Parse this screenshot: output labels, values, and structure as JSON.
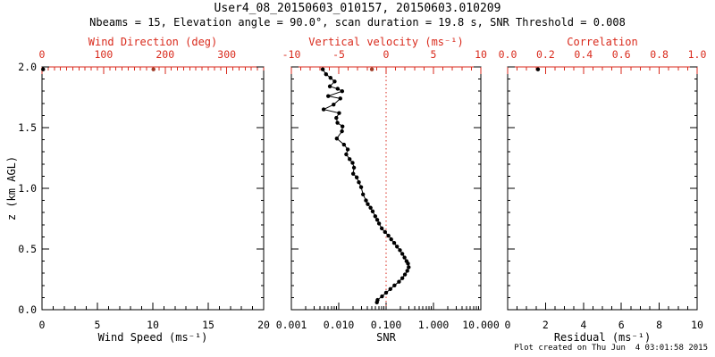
{
  "title": "User4_08_20150603_010157, 20150603.010209",
  "subtitle": "Nbeams = 15, Elevation angle = 90.0°, scan duration = 19.8 s, SNR Threshold = 0.008",
  "footer": "Plot created on Thu Jun  4 03:01:58 2015",
  "colors": {
    "background": "#ffffff",
    "black": "#000000",
    "axis_red": "#d92a1c",
    "data_red": "#a03c28"
  },
  "y_axis": {
    "label": "z (km AGL)",
    "range": [
      0,
      2
    ],
    "major": [
      0,
      0.5,
      1,
      1.5,
      2
    ],
    "labels": [
      "0.0",
      "0.5",
      "1.0",
      "1.5",
      "2.0"
    ],
    "minor_step": 0.1
  },
  "chart_data": [
    {
      "type": "scatter",
      "name": "wind",
      "ylabel": "z (km AGL)",
      "ylim": [
        0,
        2
      ],
      "bottom_axis": {
        "label": "Wind Speed (ms⁻¹)",
        "scale": "linear",
        "range": [
          0,
          20
        ],
        "major": [
          0,
          5,
          10,
          15,
          20
        ],
        "labels": [
          "0",
          "5",
          "10",
          "15",
          "20"
        ],
        "minor_step": 1,
        "color": "black"
      },
      "top_axis": {
        "label": "Wind Direction (deg)",
        "scale": "linear",
        "range": [
          0,
          360
        ],
        "major": [
          0,
          100,
          200,
          300
        ],
        "labels": [
          "0",
          "100",
          "200",
          "300"
        ],
        "minor_step": 10,
        "color": "axis_red"
      },
      "series": [
        {
          "name": "wind-speed",
          "axis": "bottom",
          "color": "black",
          "line": false,
          "points": [
            [
              0.1,
              1.98
            ]
          ]
        },
        {
          "name": "wind-direction",
          "axis": "top",
          "color": "data_red",
          "line": false,
          "points": [
            [
              181,
              1.98
            ]
          ]
        }
      ]
    },
    {
      "type": "scatter-line",
      "name": "snr",
      "ylabel": "z (km AGL)",
      "ylim": [
        0,
        2
      ],
      "bottom_axis": {
        "label": "SNR",
        "scale": "log",
        "range": [
          0.001,
          10
        ],
        "major": [
          0.001,
          0.01,
          0.1,
          1,
          10
        ],
        "labels": [
          "0.001",
          "0.010",
          "0.100",
          "1.000",
          "10.000"
        ],
        "color": "black"
      },
      "top_axis": {
        "label": "Vertical velocity (ms⁻¹)",
        "scale": "linear",
        "range": [
          -10,
          10
        ],
        "major": [
          -10,
          -5,
          0,
          5,
          10
        ],
        "labels": [
          "-10",
          "-5",
          "0",
          "5",
          "10"
        ],
        "minor_step": 1,
        "color": "axis_red"
      },
      "reference_line": {
        "axis": "bottom",
        "value": 0.1,
        "style": "dotted",
        "color": "axis_red"
      },
      "series": [
        {
          "name": "snr-profile",
          "axis": "bottom",
          "color": "black",
          "line": true,
          "points": [
            [
              0.0046,
              1.98
            ],
            [
              0.0054,
              1.94
            ],
            [
              0.0067,
              1.91
            ],
            [
              0.0082,
              1.88
            ],
            [
              0.0065,
              1.84
            ],
            [
              0.0095,
              1.82
            ],
            [
              0.0118,
              1.8
            ],
            [
              0.006,
              1.76
            ],
            [
              0.0108,
              1.74
            ],
            [
              0.0078,
              1.69
            ],
            [
              0.0048,
              1.65
            ],
            [
              0.0102,
              1.62
            ],
            [
              0.0089,
              1.58
            ],
            [
              0.0094,
              1.54
            ],
            [
              0.012,
              1.51
            ],
            [
              0.0117,
              1.47
            ],
            [
              0.0091,
              1.41
            ],
            [
              0.0129,
              1.36
            ],
            [
              0.0155,
              1.32
            ],
            [
              0.0144,
              1.28
            ],
            [
              0.017,
              1.24
            ],
            [
              0.0196,
              1.21
            ],
            [
              0.021,
              1.17
            ],
            [
              0.0202,
              1.12
            ],
            [
              0.024,
              1.09
            ],
            [
              0.0266,
              1.05
            ],
            [
              0.0297,
              1.01
            ],
            [
              0.0326,
              0.95
            ],
            [
              0.0376,
              0.9
            ],
            [
              0.041,
              0.87
            ],
            [
              0.047,
              0.84
            ],
            [
              0.052,
              0.81
            ],
            [
              0.059,
              0.77
            ],
            [
              0.065,
              0.74
            ],
            [
              0.071,
              0.71
            ],
            [
              0.081,
              0.67
            ],
            [
              0.095,
              0.64
            ],
            [
              0.112,
              0.61
            ],
            [
              0.128,
              0.58
            ],
            [
              0.148,
              0.55
            ],
            [
              0.17,
              0.52
            ],
            [
              0.196,
              0.49
            ],
            [
              0.22,
              0.46
            ],
            [
              0.245,
              0.43
            ],
            [
              0.27,
              0.4
            ],
            [
              0.29,
              0.38
            ],
            [
              0.3,
              0.35
            ],
            [
              0.28,
              0.32
            ],
            [
              0.25,
              0.29
            ],
            [
              0.22,
              0.26
            ],
            [
              0.187,
              0.23
            ],
            [
              0.15,
              0.2
            ],
            [
              0.123,
              0.17
            ],
            [
              0.1,
              0.14
            ],
            [
              0.082,
              0.11
            ],
            [
              0.066,
              0.08
            ],
            [
              0.064,
              0.06
            ]
          ]
        },
        {
          "name": "vertical-velocity",
          "axis": "top",
          "color": "data_red",
          "line": false,
          "points": [
            [
              -1.5,
              1.98
            ]
          ]
        }
      ]
    },
    {
      "type": "scatter",
      "name": "residual",
      "ylabel": "z (km AGL)",
      "ylim": [
        0,
        2
      ],
      "bottom_axis": {
        "label": "Residual (ms⁻¹)",
        "scale": "linear",
        "range": [
          0,
          10
        ],
        "major": [
          0,
          2,
          4,
          6,
          8,
          10
        ],
        "labels": [
          "0",
          "2",
          "4",
          "6",
          "8",
          "10"
        ],
        "minor_step": 0.5,
        "color": "black"
      },
      "top_axis": {
        "label": "Correlation",
        "scale": "linear",
        "range": [
          0,
          1
        ],
        "major": [
          0,
          0.2,
          0.4,
          0.6,
          0.8,
          1.0
        ],
        "labels": [
          "0.0",
          "0.2",
          "0.4",
          "0.6",
          "0.8",
          "1.0"
        ],
        "minor_step": 0.05,
        "color": "axis_red"
      },
      "series": [
        {
          "name": "residual",
          "axis": "bottom",
          "color": "black",
          "line": false,
          "points": [
            [
              1.6,
              1.98
            ]
          ]
        }
      ]
    }
  ]
}
